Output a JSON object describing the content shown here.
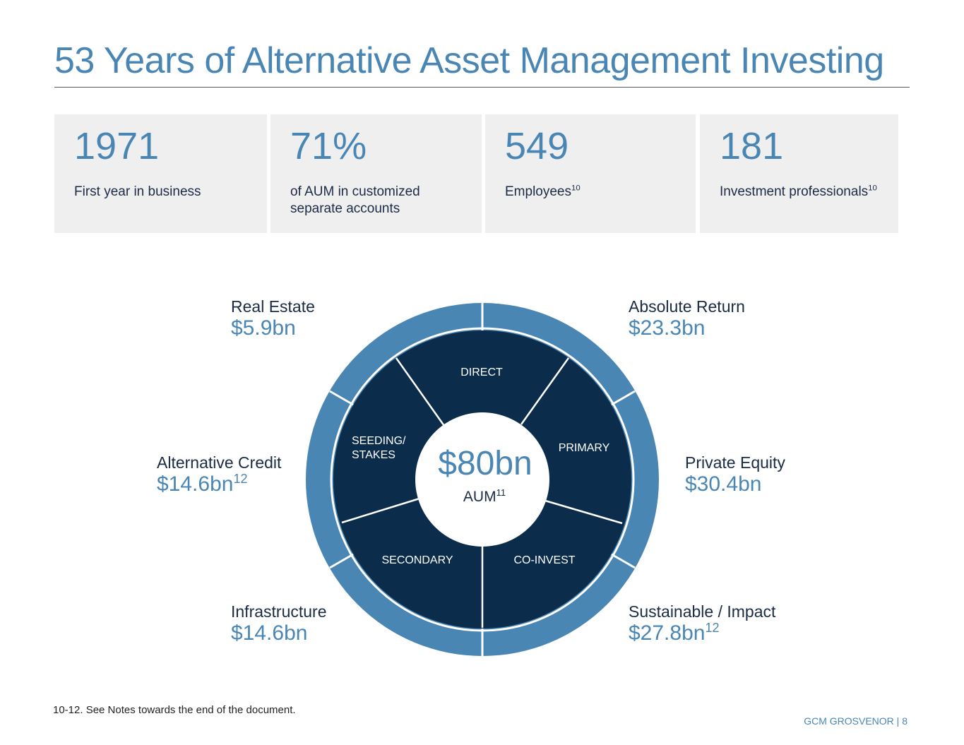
{
  "title": "53 Years of Alternative Asset Management Investing",
  "stats": [
    {
      "value": "1971",
      "label": "First year in business",
      "note": ""
    },
    {
      "value": "71%",
      "label": "of AUM in customized separate accounts",
      "note": ""
    },
    {
      "value": "549",
      "label": "Employees",
      "note": "10"
    },
    {
      "value": "181",
      "label": "Investment professionals",
      "note": "10"
    }
  ],
  "center": {
    "value": "$80bn",
    "label": "AUM",
    "note": "11"
  },
  "inner_segments": [
    "DIRECT",
    "PRIMARY",
    "CO-INVEST",
    "SECONDARY",
    "SEEDING/",
    "STAKES"
  ],
  "strategies": {
    "real_estate": {
      "name": "Real Estate",
      "amount": "$5.9bn",
      "note": ""
    },
    "absolute_return": {
      "name": "Absolute Return",
      "amount": "$23.3bn",
      "note": ""
    },
    "alternative_credit": {
      "name": "Alternative Credit",
      "amount": "$14.6bn",
      "note": "12"
    },
    "private_equity": {
      "name": "Private Equity",
      "amount": "$30.4bn",
      "note": ""
    },
    "infrastructure": {
      "name": "Infrastructure",
      "amount": "$14.6bn",
      "note": ""
    },
    "sustainable_impact": {
      "name": "Sustainable / Impact",
      "amount": "$27.8bn",
      "note": "12"
    }
  },
  "footnote": "10-12. See Notes towards the end of the document.",
  "footer": "GCM GROSVENOR | 8",
  "colors": {
    "accent": "#4a86b4",
    "navy": "#0b2d4b",
    "text": "#1b2b45",
    "panel": "#efefef"
  }
}
